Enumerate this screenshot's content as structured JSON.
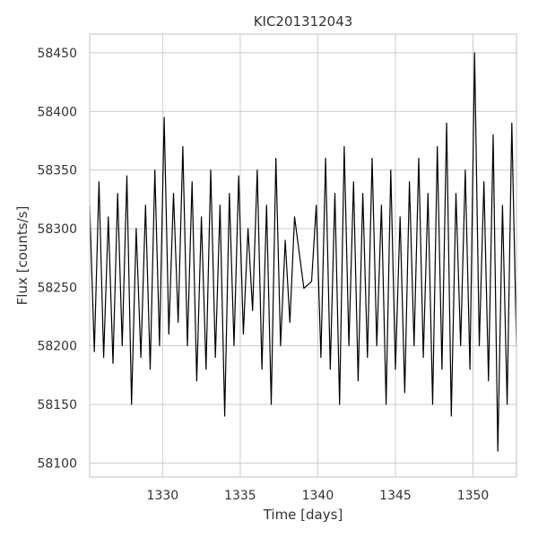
{
  "chart_data": {
    "type": "line",
    "title": "KIC201312043",
    "xlabel": "Time [days]",
    "ylabel": "Flux [counts/s]",
    "xlim": [
      1325.3,
      1352.8
    ],
    "ylim": [
      58088,
      58466
    ],
    "xticks": [
      1330,
      1335,
      1340,
      1345,
      1350
    ],
    "yticks": [
      58100,
      58150,
      58200,
      58250,
      58300,
      58350,
      58400,
      58450
    ],
    "grid": true,
    "legend": "none",
    "line_color": "#000000",
    "series": [
      {
        "name": "",
        "x": [
          1325.3,
          1325.6,
          1325.9,
          1326.2,
          1326.5,
          1326.8,
          1327.1,
          1327.4,
          1327.7,
          1328.0,
          1328.3,
          1328.6,
          1328.9,
          1329.2,
          1329.5,
          1329.8,
          1330.1,
          1330.4,
          1330.7,
          1331.0,
          1331.3,
          1331.6,
          1331.9,
          1332.2,
          1332.5,
          1332.8,
          1333.1,
          1333.4,
          1333.7,
          1334.0,
          1334.3,
          1334.6,
          1334.9,
          1335.2,
          1335.5,
          1335.8,
          1336.1,
          1336.4,
          1336.7,
          1337.0,
          1337.3,
          1337.6,
          1337.9,
          1338.2,
          1338.5,
          1339.1,
          1339.6,
          1339.9,
          1340.2,
          1340.5,
          1340.8,
          1341.1,
          1341.4,
          1341.7,
          1342.0,
          1342.3,
          1342.6,
          1342.9,
          1343.2,
          1343.5,
          1343.8,
          1344.1,
          1344.4,
          1344.7,
          1345.0,
          1345.3,
          1345.6,
          1345.9,
          1346.2,
          1346.5,
          1346.8,
          1347.1,
          1347.4,
          1347.7,
          1348.0,
          1348.3,
          1348.6,
          1348.9,
          1349.2,
          1349.5,
          1349.8,
          1350.1,
          1350.4,
          1350.7,
          1351.0,
          1351.3,
          1351.6,
          1351.9,
          1352.2,
          1352.5,
          1352.8
        ],
        "y": [
          58320,
          58195,
          58340,
          58190,
          58310,
          58185,
          58330,
          58200,
          58345,
          58150,
          58300,
          58190,
          58320,
          58180,
          58350,
          58200,
          58395,
          58210,
          58330,
          58220,
          58370,
          58200,
          58340,
          58170,
          58310,
          58180,
          58350,
          58190,
          58320,
          58140,
          58330,
          58200,
          58345,
          58210,
          58300,
          58230,
          58350,
          58180,
          58320,
          58150,
          58360,
          58200,
          58290,
          58220,
          58310,
          58249,
          58255,
          58320,
          58190,
          58360,
          58180,
          58330,
          58150,
          58370,
          58200,
          58340,
          58170,
          58330,
          58190,
          58360,
          58200,
          58320,
          58150,
          58350,
          58180,
          58310,
          58160,
          58340,
          58200,
          58360,
          58190,
          58330,
          58150,
          58370,
          58180,
          58390,
          58140,
          58330,
          58200,
          58350,
          58180,
          58450,
          58200,
          58340,
          58170,
          58380,
          58110,
          58320,
          58150,
          58390,
          58200
        ]
      }
    ]
  }
}
